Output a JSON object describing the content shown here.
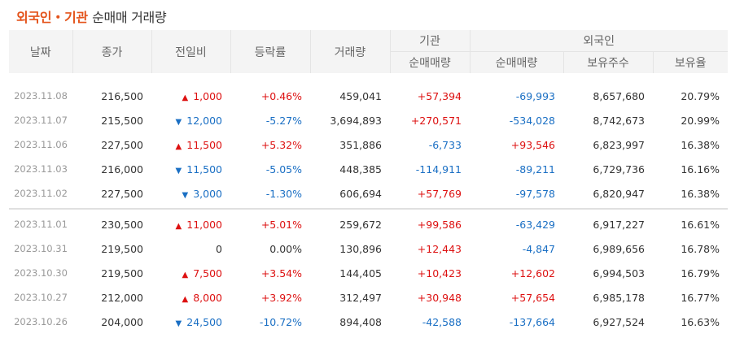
{
  "title": {
    "part1": "외국인・기관",
    "part2": "순매매 거래량"
  },
  "headers": {
    "date": "날짜",
    "close": "종가",
    "change": "전일비",
    "rate": "등락률",
    "volume": "거래량",
    "inst_group": "기관",
    "foreign_group": "외국인",
    "inst_net": "순매매량",
    "foreign_net": "순매매량",
    "holdings": "보유주수",
    "ratio": "보유율"
  },
  "colors": {
    "up": "#dd1111",
    "down": "#1a6fc4",
    "title_accent": "#e4541c"
  },
  "rows": [
    {
      "date": "2023.11.08",
      "close": "216,500",
      "dir": "up",
      "change": "1,000",
      "rate": "+0.46%",
      "volume": "459,041",
      "inst": "+57,394",
      "foreign": "-69,993",
      "holdings": "8,657,680",
      "ratio": "20.79%"
    },
    {
      "date": "2023.11.07",
      "close": "215,500",
      "dir": "down",
      "change": "12,000",
      "rate": "-5.27%",
      "volume": "3,694,893",
      "inst": "+270,571",
      "foreign": "-534,028",
      "holdings": "8,742,673",
      "ratio": "20.99%"
    },
    {
      "date": "2023.11.06",
      "close": "227,500",
      "dir": "up",
      "change": "11,500",
      "rate": "+5.32%",
      "volume": "351,886",
      "inst": "-6,733",
      "foreign": "+93,546",
      "holdings": "6,823,997",
      "ratio": "16.38%"
    },
    {
      "date": "2023.11.03",
      "close": "216,000",
      "dir": "down",
      "change": "11,500",
      "rate": "-5.05%",
      "volume": "448,385",
      "inst": "-114,911",
      "foreign": "-89,211",
      "holdings": "6,729,736",
      "ratio": "16.16%"
    },
    {
      "date": "2023.11.02",
      "close": "227,500",
      "dir": "down",
      "change": "3,000",
      "rate": "-1.30%",
      "volume": "606,694",
      "inst": "+57,769",
      "foreign": "-97,578",
      "holdings": "6,820,947",
      "ratio": "16.38%"
    },
    {
      "date": "2023.11.01",
      "close": "230,500",
      "dir": "up",
      "change": "11,000",
      "rate": "+5.01%",
      "volume": "259,672",
      "inst": "+99,586",
      "foreign": "-63,429",
      "holdings": "6,917,227",
      "ratio": "16.61%"
    },
    {
      "date": "2023.10.31",
      "close": "219,500",
      "dir": "none",
      "change": "0",
      "rate": "0.00%",
      "volume": "130,896",
      "inst": "+12,443",
      "foreign": "-4,847",
      "holdings": "6,989,656",
      "ratio": "16.78%"
    },
    {
      "date": "2023.10.30",
      "close": "219,500",
      "dir": "up",
      "change": "7,500",
      "rate": "+3.54%",
      "volume": "144,405",
      "inst": "+10,423",
      "foreign": "+12,602",
      "holdings": "6,994,503",
      "ratio": "16.79%"
    },
    {
      "date": "2023.10.27",
      "close": "212,000",
      "dir": "up",
      "change": "8,000",
      "rate": "+3.92%",
      "volume": "312,497",
      "inst": "+30,948",
      "foreign": "+57,654",
      "holdings": "6,985,178",
      "ratio": "16.77%"
    },
    {
      "date": "2023.10.26",
      "close": "204,000",
      "dir": "down",
      "change": "24,500",
      "rate": "-10.72%",
      "volume": "894,408",
      "inst": "-42,588",
      "foreign": "-137,664",
      "holdings": "6,927,524",
      "ratio": "16.63%"
    }
  ]
}
